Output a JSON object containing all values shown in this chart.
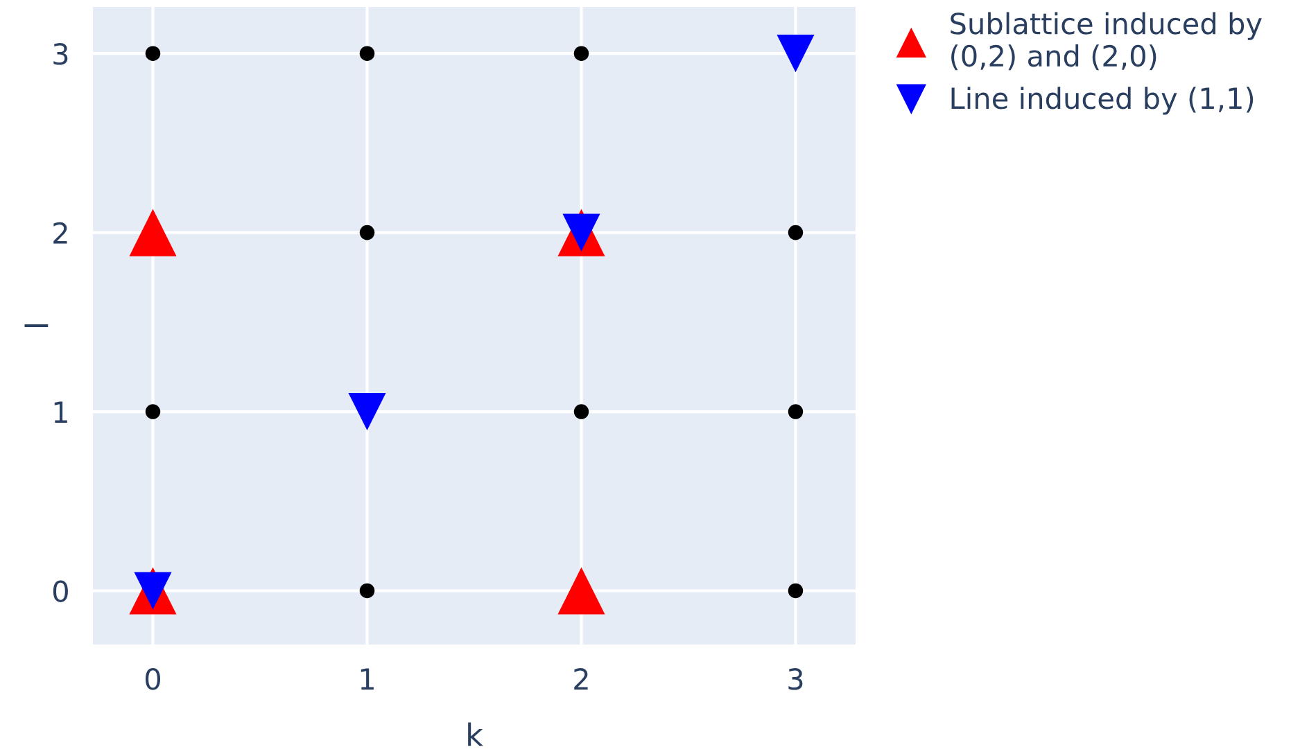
{
  "chart_data": {
    "type": "scatter",
    "xlabel": "k",
    "ylabel": "l",
    "xlim": [
      -0.28,
      3.28
    ],
    "ylim": [
      -0.3,
      3.26
    ],
    "xticks": [
      0,
      1,
      2,
      3
    ],
    "yticks": [
      0,
      1,
      2,
      3
    ],
    "grid": true,
    "legend": "top right",
    "series": [
      {
        "color": "#000000",
        "marker": "circle",
        "x": [
          0,
          1,
          2,
          1,
          3,
          0,
          2,
          3,
          1,
          3
        ],
        "values": [
          3,
          3,
          3,
          2,
          2,
          1,
          1,
          1,
          0,
          0
        ]
      },
      {
        "name": "Sublattice induced by (0,2) and (2,0)",
        "color": "#ff0000",
        "marker": "triangle",
        "x": [
          0,
          2,
          0,
          2
        ],
        "values": [
          0,
          0,
          2,
          2
        ]
      },
      {
        "name": "Line induced by (1,1)",
        "color": "#0000ff",
        "marker": "triangle_down",
        "x": [
          0,
          1,
          2,
          3
        ],
        "values": [
          0,
          1,
          2,
          3
        ]
      }
    ]
  }
}
